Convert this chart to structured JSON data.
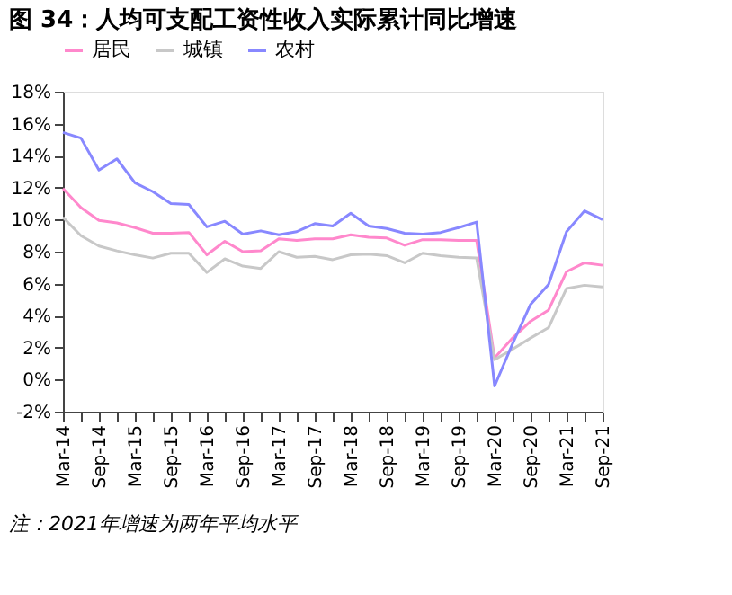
{
  "chart_data": {
    "type": "line",
    "title": "图 34：人均可支配工资性收入实际累计同比增速",
    "categories": [
      "Mar-14",
      null,
      "Sep-14",
      null,
      "Mar-15",
      null,
      "Sep-15",
      null,
      "Mar-16",
      null,
      "Sep-16",
      null,
      "Mar-17",
      null,
      "Sep-17",
      null,
      "Mar-18",
      null,
      "Sep-18",
      null,
      "Mar-19",
      null,
      "Sep-19",
      null,
      "Mar-20",
      null,
      "Sep-20",
      null,
      "Mar-21",
      null,
      "Sep-21"
    ],
    "series": [
      {
        "name": "居民",
        "color": "#ff88cc",
        "values": [
          11.95,
          10.75,
          9.95,
          9.8,
          9.5,
          9.15,
          9.15,
          9.2,
          7.8,
          8.65,
          8.0,
          8.05,
          8.8,
          8.7,
          8.8,
          8.8,
          9.05,
          8.9,
          8.85,
          8.4,
          8.75,
          8.75,
          8.7,
          8.7,
          1.35,
          2.6,
          3.65,
          4.35,
          6.75,
          7.3,
          7.15
        ]
      },
      {
        "name": "城镇",
        "color": "#c8c8c8",
        "values": [
          10.15,
          9.0,
          8.35,
          8.05,
          7.8,
          7.6,
          7.9,
          7.9,
          6.7,
          7.55,
          7.1,
          6.95,
          8.0,
          7.65,
          7.7,
          7.5,
          7.8,
          7.85,
          7.75,
          7.3,
          7.9,
          7.75,
          7.65,
          7.6,
          1.25,
          1.9,
          2.6,
          3.25,
          5.7,
          5.9,
          5.8
        ]
      },
      {
        "name": "农村",
        "color": "#8888ff",
        "values": [
          15.45,
          15.1,
          13.1,
          13.8,
          12.3,
          11.75,
          11.0,
          10.95,
          9.55,
          9.9,
          9.1,
          9.3,
          9.05,
          9.25,
          9.75,
          9.6,
          10.4,
          9.6,
          9.45,
          9.15,
          9.1,
          9.2,
          9.5,
          9.85,
          -0.4,
          2.25,
          4.7,
          5.95,
          9.25,
          10.55,
          10.0
        ]
      }
    ],
    "ylim": [
      -2,
      18
    ],
    "yticks": [
      {
        "value": -2,
        "label": "-2%"
      },
      {
        "value": 0,
        "label": "0%"
      },
      {
        "value": 2,
        "label": "2%"
      },
      {
        "value": 4,
        "label": "4%"
      },
      {
        "value": 6,
        "label": "6%"
      },
      {
        "value": 8,
        "label": "8%"
      },
      {
        "value": 10,
        "label": "10%"
      },
      {
        "value": 12,
        "label": "12%"
      },
      {
        "value": 14,
        "label": "14%"
      },
      {
        "value": 16,
        "label": "16%"
      },
      {
        "value": 18,
        "label": "18%"
      }
    ],
    "legend": "top",
    "grid": false,
    "annotations": [
      "注：2021年增速为两年平均水平"
    ]
  }
}
